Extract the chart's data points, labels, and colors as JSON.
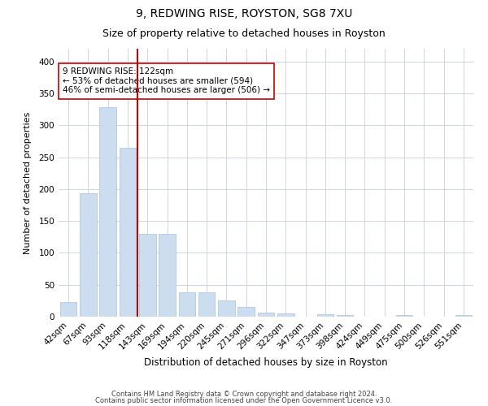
{
  "title1": "9, REDWING RISE, ROYSTON, SG8 7XU",
  "title2": "Size of property relative to detached houses in Royston",
  "xlabel": "Distribution of detached houses by size in Royston",
  "ylabel": "Number of detached properties",
  "categories": [
    "42sqm",
    "67sqm",
    "93sqm",
    "118sqm",
    "143sqm",
    "169sqm",
    "194sqm",
    "220sqm",
    "245sqm",
    "271sqm",
    "296sqm",
    "322sqm",
    "347sqm",
    "373sqm",
    "398sqm",
    "424sqm",
    "449sqm",
    "475sqm",
    "500sqm",
    "526sqm",
    "551sqm"
  ],
  "values": [
    23,
    193,
    328,
    265,
    130,
    130,
    38,
    38,
    25,
    15,
    7,
    5,
    0,
    4,
    3,
    0,
    0,
    2,
    0,
    0,
    2
  ],
  "bar_color": "#ccddf0",
  "bar_edge_color": "#a8c0dc",
  "vline_x": 3.5,
  "vline_color": "#cc0000",
  "annotation_text": "9 REDWING RISE: 122sqm\n← 53% of detached houses are smaller (594)\n46% of semi-detached houses are larger (506) →",
  "annotation_box_color": "#ffffff",
  "annotation_box_edge": "#cc0000",
  "ylim": [
    0,
    420
  ],
  "yticks": [
    0,
    50,
    100,
    150,
    200,
    250,
    300,
    350,
    400
  ],
  "footer1": "Contains HM Land Registry data © Crown copyright and database right 2024.",
  "footer2": "Contains public sector information licensed under the Open Government Licence v3.0.",
  "bg_color": "#ffffff",
  "grid_color": "#c8d0dc",
  "title1_fontsize": 10,
  "title2_fontsize": 9,
  "ylabel_fontsize": 8,
  "xlabel_fontsize": 8.5,
  "tick_fontsize": 7.5,
  "annot_fontsize": 7.5,
  "footer_fontsize": 6
}
